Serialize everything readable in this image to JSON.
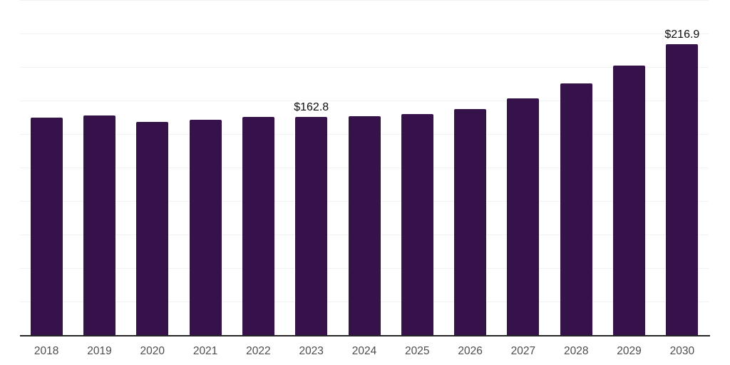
{
  "chart_data": {
    "type": "bar",
    "title": "",
    "xlabel": "",
    "ylabel": "",
    "categories": [
      "2018",
      "2019",
      "2020",
      "2021",
      "2022",
      "2023",
      "2024",
      "2025",
      "2026",
      "2027",
      "2028",
      "2029",
      "2030"
    ],
    "values": [
      162.4,
      164.0,
      158.8,
      160.4,
      162.7,
      162.8,
      163.3,
      165.1,
      168.8,
      176.8,
      188.0,
      200.8,
      216.9
    ],
    "annotations": [
      {
        "category": "2023",
        "text": "$162.8"
      },
      {
        "category": "2030",
        "text": "$216.9"
      }
    ],
    "ylim": [
      0,
      250
    ],
    "gridline_step": 25,
    "grid": true,
    "legend": false,
    "y_axis_labels_visible": false,
    "colors": {
      "bar": "#36124B",
      "gridline": "#f2f2f2",
      "axis_line": "#262626",
      "tick_label": "#4d4d4d",
      "value_label": "#0d0d0d",
      "background": "#ffffff"
    }
  }
}
